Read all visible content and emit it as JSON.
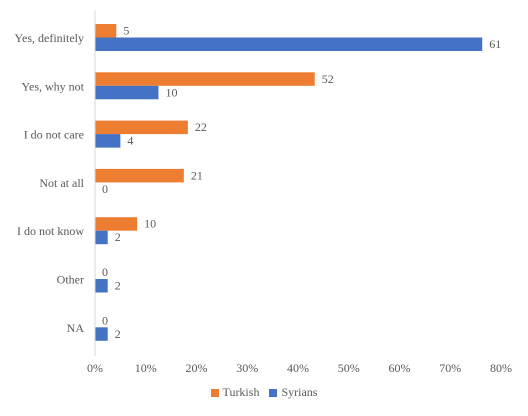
{
  "chart_data": {
    "type": "bar",
    "orientation": "horizontal",
    "categories": [
      "Yes, definitely",
      "Yes, why not",
      "I do not care",
      "Not at all",
      "I do not know",
      "Other",
      "NA"
    ],
    "series": [
      {
        "name": "Turkish",
        "color": "#ED7D31",
        "values": [
          5,
          52,
          22,
          21,
          10,
          0,
          0
        ]
      },
      {
        "name": "Syrians",
        "color": "#4472C4",
        "values": [
          61,
          10,
          4,
          0,
          2,
          2,
          2
        ]
      }
    ],
    "percent_of": [
      {
        "name": "Turkish",
        "values": [
          4.2,
          43.3,
          18.3,
          17.5,
          8.3,
          0,
          0
        ]
      },
      {
        "name": "Syrians",
        "values": [
          76.3,
          12.5,
          5,
          0,
          2.5,
          2.5,
          2.5
        ]
      }
    ],
    "xlim": [
      0,
      80
    ],
    "xticks": [
      "0%",
      "10%",
      "20%",
      "30%",
      "40%",
      "50%",
      "60%",
      "70%",
      "80%"
    ],
    "legend_position": "bottom",
    "grid": false
  }
}
